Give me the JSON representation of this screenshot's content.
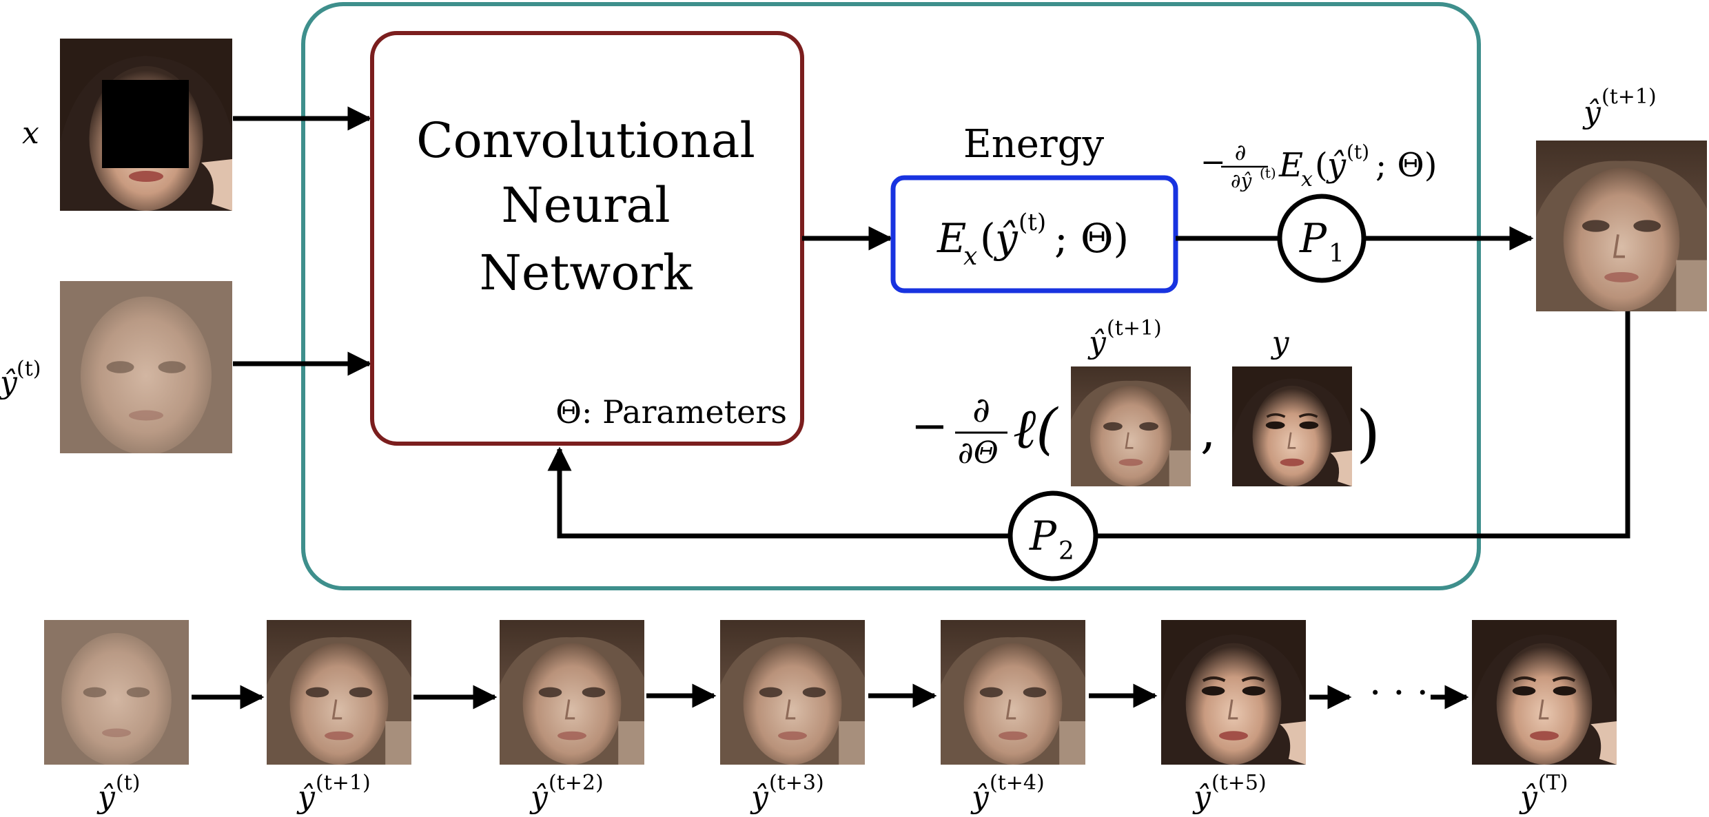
{
  "colors": {
    "frame": "#3e8f8c",
    "cnn_border": "#7b1e1e",
    "energy_border": "#1833e0",
    "arrow": "#000000"
  },
  "labels": {
    "x": "x",
    "y_hat_t": "ŷ",
    "sup_t": "(t)",
    "sup_t1": "(t+1)",
    "y": "y"
  },
  "cnn": {
    "line1": "Convolutional",
    "line2": "Neural",
    "line3": "Network",
    "params": "Θ: Parameters"
  },
  "energy": {
    "title": "Energy",
    "formula_E": "E",
    "formula_sub": "x",
    "formula_open": "(",
    "formula_sup": "(t)",
    "formula_tail": "; Θ)"
  },
  "gradient": {
    "neg": "−",
    "num": "∂",
    "den": "∂ŷ",
    "den_sup": "(t)"
  },
  "loss": {
    "neg": "−",
    "num": "∂",
    "den": "∂Θ",
    "ell": "ℓ(",
    "comma": ",",
    "close": ")"
  },
  "nodes": {
    "p1": "P",
    "p1_sub": "1",
    "p2": "P",
    "p2_sub": "2"
  },
  "sequence": {
    "sups": [
      "(t)",
      "(t+1)",
      "(t+2)",
      "(t+3)",
      "(t+4)",
      "(t+5)",
      "(T)"
    ],
    "ellipsis": "· · ·"
  }
}
